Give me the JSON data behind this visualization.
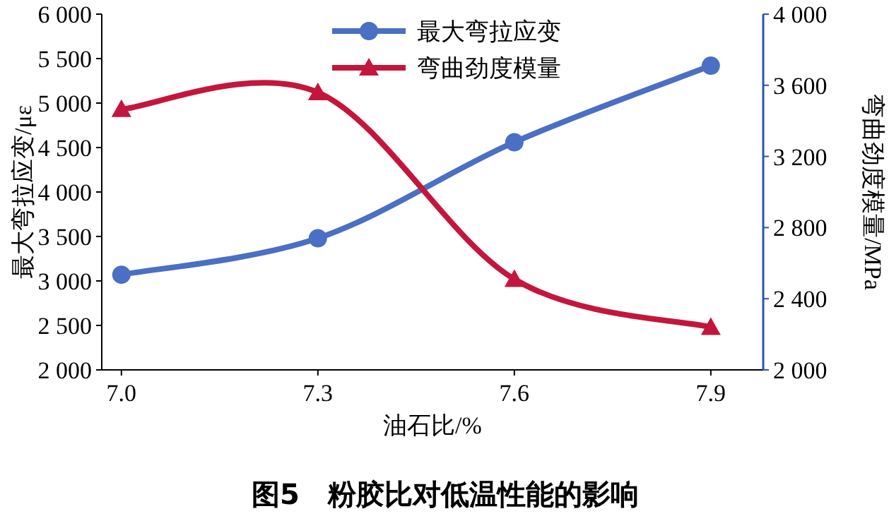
{
  "chart_data": {
    "type": "line",
    "title": "图5　粉胶比对低温性能的影响",
    "xlabel": "油石比/%",
    "ylabel": "最大弯拉应变/με",
    "y2label": "弯曲劲度模量/MPa",
    "x": [
      7.0,
      7.3,
      7.6,
      7.9
    ],
    "xlim": [
      6.97,
      7.98
    ],
    "xticks": [
      {
        "value": 7.0,
        "label": "7.0"
      },
      {
        "value": 7.3,
        "label": "7.3"
      },
      {
        "value": 7.6,
        "label": "7.6"
      },
      {
        "value": 7.9,
        "label": "7.9"
      }
    ],
    "ylim": [
      2000,
      6000
    ],
    "yticks": [
      {
        "value": 2000,
        "label": "2 000"
      },
      {
        "value": 2500,
        "label": "2 500"
      },
      {
        "value": 3000,
        "label": "3 000"
      },
      {
        "value": 3500,
        "label": "3 500"
      },
      {
        "value": 4000,
        "label": "4 000"
      },
      {
        "value": 4500,
        "label": "4 500"
      },
      {
        "value": 5000,
        "label": "5 000"
      },
      {
        "value": 5500,
        "label": "5 500"
      },
      {
        "value": 6000,
        "label": "6 000"
      }
    ],
    "y2lim": [
      2000,
      4000
    ],
    "y2ticks": [
      {
        "value": 2000,
        "label": "2 000"
      },
      {
        "value": 2400,
        "label": "2 400"
      },
      {
        "value": 2800,
        "label": "2 800"
      },
      {
        "value": 3200,
        "label": "3 200"
      },
      {
        "value": 3600,
        "label": "3 600"
      },
      {
        "value": 4000,
        "label": "4 000"
      }
    ],
    "series": [
      {
        "name": "最大弯拉应变",
        "color": "#4a6fc4",
        "marker": "circle",
        "values": [
          3070,
          3480,
          4560,
          5420
        ]
      },
      {
        "name": "弯曲劲度模量",
        "color": "#c4163c",
        "marker": "triangle",
        "axis": "y2",
        "values": [
          3465,
          3560,
          2510,
          2240
        ]
      }
    ],
    "legend": "top",
    "grid": false
  }
}
